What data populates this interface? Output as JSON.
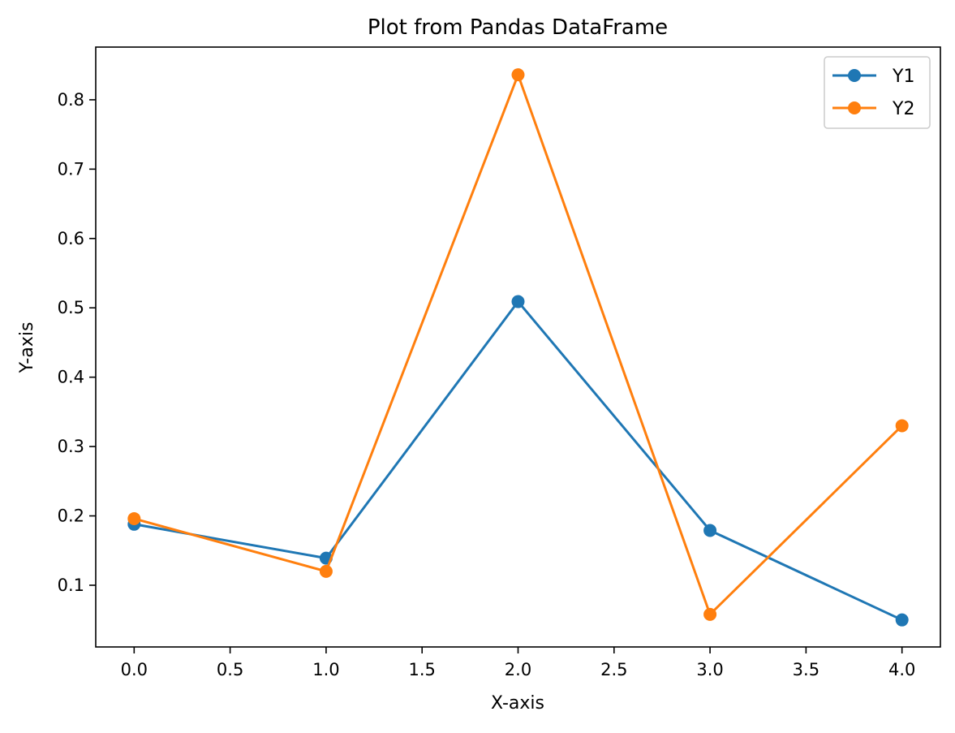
{
  "chart_data": {
    "type": "line",
    "title": "Plot from Pandas DataFrame",
    "xlabel": "X-axis",
    "ylabel": "Y-axis",
    "x": [
      0,
      1,
      2,
      3,
      4
    ],
    "series": [
      {
        "name": "Y1",
        "color": "#1f77b4",
        "values": [
          0.188,
          0.139,
          0.509,
          0.179,
          0.05
        ]
      },
      {
        "name": "Y2",
        "color": "#ff7f0e",
        "values": [
          0.196,
          0.12,
          0.836,
          0.058,
          0.33
        ]
      }
    ],
    "xlim": [
      -0.2,
      4.2
    ],
    "ylim": [
      0.011,
      0.876
    ],
    "xticks": [
      0.0,
      0.5,
      1.0,
      1.5,
      2.0,
      2.5,
      3.0,
      3.5,
      4.0
    ],
    "xtick_labels": [
      "0.0",
      "0.5",
      "1.0",
      "1.5",
      "2.0",
      "2.5",
      "3.0",
      "3.5",
      "4.0"
    ],
    "yticks": [
      0.1,
      0.2,
      0.3,
      0.4,
      0.5,
      0.6,
      0.7,
      0.8
    ],
    "ytick_labels": [
      "0.1",
      "0.2",
      "0.3",
      "0.4",
      "0.5",
      "0.6",
      "0.7",
      "0.8"
    ],
    "grid": false,
    "legend_position": "top-right",
    "marker": "circle"
  }
}
